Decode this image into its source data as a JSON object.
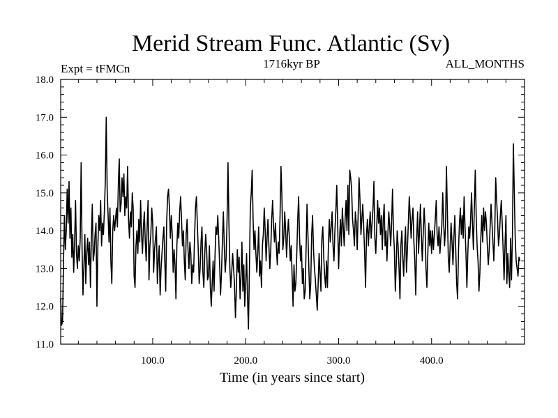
{
  "chart_data": {
    "type": "line",
    "title": "Merid Stream Func. Atlantic (Sv)",
    "subtitle_left": "Expt = tFMCn",
    "subtitle_center": "1716kyr BP",
    "subtitle_right": "ALL_MONTHS",
    "xlabel": "Time (in years since start)",
    "ylabel": "",
    "xlim": [
      1,
      500
    ],
    "ylim": [
      11.0,
      18.0
    ],
    "x_ticks": [
      100,
      200,
      300,
      400
    ],
    "x_tick_labels": [
      "100.0",
      "200.0",
      "300.0",
      "400.0"
    ],
    "y_ticks": [
      11,
      12,
      13,
      14,
      15,
      16,
      17,
      18
    ],
    "y_tick_labels": [
      "11.0",
      "12.0",
      "13.0",
      "14.0",
      "15.0",
      "16.0",
      "17.0",
      "18.0"
    ],
    "series": [
      {
        "name": "tFMCn",
        "color": "#000000",
        "x_start": 1,
        "x_step": 1,
        "values": [
          12.2,
          11.5,
          11.6,
          13.1,
          14.4,
          13.5,
          14.0,
          15.1,
          14.2,
          15.3,
          13.8,
          14.6,
          13.3,
          13.9,
          12.9,
          13.7,
          14.8,
          13.4,
          13.0,
          13.6,
          13.2,
          13.8,
          15.8,
          13.5,
          12.3,
          13.1,
          13.9,
          12.6,
          13.4,
          13.8,
          13.1,
          13.7,
          12.5,
          13.8,
          14.7,
          13.2,
          13.4,
          13.9,
          14.2,
          12.0,
          13.6,
          14.4,
          14.0,
          14.8,
          13.6,
          14.2,
          13.9,
          14.5,
          15.3,
          17.0,
          15.1,
          14.4,
          13.7,
          14.6,
          13.2,
          12.6,
          14.0,
          14.4,
          14.0,
          14.3,
          14.6,
          14.1,
          15.2,
          15.9,
          14.5,
          14.7,
          15.4,
          14.9,
          15.5,
          14.4,
          14.9,
          14.6,
          15.7,
          14.3,
          13.8,
          14.5,
          14.1,
          15.0,
          14.6,
          12.8,
          12.5,
          13.6,
          14.0,
          13.4,
          14.3,
          13.7,
          14.8,
          13.9,
          13.4,
          14.1,
          14.5,
          13.7,
          13.2,
          14.1,
          14.8,
          12.7,
          13.6,
          13.9,
          14.6,
          14.2,
          12.9,
          13.5,
          13.8,
          14.1,
          12.6,
          13.2,
          13.6,
          12.3,
          13.0,
          13.4,
          13.8,
          14.1,
          13.2,
          12.4,
          14.2,
          14.9,
          15.1,
          14.6,
          13.8,
          14.4,
          13.9,
          12.9,
          13.5,
          13.1,
          12.2,
          13.6,
          14.2,
          13.8,
          14.5,
          14.9,
          14.3,
          13.6,
          14.0,
          13.2,
          12.7,
          13.9,
          14.3,
          13.5,
          13.0,
          13.7,
          13.4,
          12.6,
          13.1,
          12.9,
          13.8,
          14.6,
          14.9,
          14.2,
          13.5,
          12.6,
          13.0,
          13.7,
          14.1,
          12.9,
          12.5,
          13.4,
          13.9,
          13.5,
          12.7,
          12.8,
          13.6,
          12.5,
          12.0,
          12.6,
          13.2,
          12.4,
          13.3,
          14.1,
          13.9,
          14.4,
          13.8,
          13.1,
          12.3,
          12.9,
          13.7,
          14.5,
          13.6,
          12.9,
          13.3,
          14.3,
          15.8,
          14.2,
          13.0,
          12.5,
          12.9,
          13.4,
          13.0,
          12.6,
          11.7,
          12.4,
          13.5,
          12.9,
          13.3,
          12.2,
          12.8,
          13.7,
          12.4,
          13.1,
          12.0,
          12.6,
          13.4,
          12.2,
          11.4,
          12.9,
          14.6,
          15.0,
          15.6,
          14.3,
          13.5,
          14.0,
          13.4,
          12.9,
          13.4,
          14.1,
          12.8,
          13.2,
          12.5,
          13.6,
          13.9,
          14.6,
          14.0,
          13.2,
          13.8,
          14.3,
          13.6,
          13.0,
          13.5,
          14.3,
          14.8,
          14.1,
          13.7,
          14.2,
          13.6,
          13.1,
          13.7,
          13.4,
          14.4,
          15.7,
          14.9,
          13.5,
          13.8,
          14.5,
          14.0,
          13.3,
          13.9,
          14.3,
          13.8,
          13.2,
          13.6,
          12.8,
          12.0,
          13.1,
          12.4,
          12.6,
          13.4,
          14.3,
          14.9,
          13.8,
          13.2,
          13.6,
          12.6,
          13.0,
          12.2,
          12.4,
          13.5,
          14.7,
          13.9,
          13.0,
          12.2,
          12.6,
          13.9,
          14.4,
          13.5,
          13.0,
          12.7,
          12.3,
          11.9,
          12.6,
          13.4,
          12.9,
          12.4,
          13.8,
          14.1,
          13.3,
          12.8,
          12.5,
          13.2,
          12.5,
          13.6,
          14.3,
          13.7,
          14.1,
          14.5,
          13.6,
          13.2,
          14.0,
          14.5,
          15.2,
          14.2,
          13.0,
          13.8,
          14.3,
          13.6,
          14.6,
          14.1,
          13.6,
          14.3,
          14.8,
          14.0,
          15.2,
          13.9,
          15.6,
          15.4,
          15.1,
          14.3,
          14.0,
          13.6,
          14.5,
          14.2,
          13.5,
          14.4,
          15.4,
          14.8,
          13.9,
          14.3,
          14.7,
          14.1,
          13.4,
          12.5,
          13.9,
          14.3,
          13.6,
          14.1,
          14.5,
          13.8,
          14.2,
          14.6,
          15.3,
          13.8,
          13.4,
          14.1,
          14.8,
          14.2,
          14.6,
          13.9,
          14.4,
          13.5,
          14.3,
          14.7,
          13.6,
          14.0,
          13.2,
          13.9,
          14.5,
          14.1,
          13.6,
          14.2,
          15.1,
          14.0,
          13.5,
          12.4,
          13.1,
          14.0,
          13.6,
          13.0,
          12.2,
          13.6,
          14.0,
          13.3,
          12.8,
          13.6,
          14.1,
          12.9,
          13.5,
          14.2,
          14.9,
          14.4,
          13.8,
          14.3,
          14.6,
          13.7,
          13.2,
          12.3,
          13.8,
          14.5,
          13.4,
          14.0,
          14.7,
          13.9,
          13.2,
          13.9,
          14.6,
          14.1,
          13.0,
          12.5,
          13.4,
          14.2,
          13.6,
          14.0,
          13.4,
          14.0,
          13.5,
          13.9,
          14.3,
          14.8,
          13.9,
          13.6,
          14.1,
          13.4,
          13.8,
          14.1,
          15.0,
          14.2,
          13.6,
          14.1,
          15.7,
          14.5,
          13.3,
          12.9,
          13.6,
          14.2,
          13.7,
          13.1,
          13.8,
          14.4,
          13.5,
          12.6,
          12.2,
          13.5,
          14.2,
          14.6,
          13.9,
          14.4,
          13.8,
          14.9,
          14.1,
          13.4,
          12.5,
          13.4,
          14.1,
          13.8,
          14.3,
          15.0,
          14.2,
          13.5,
          14.6,
          15.6,
          14.4,
          13.6,
          13.2,
          12.4,
          12.9,
          13.8,
          14.4,
          13.7,
          14.6,
          14.0,
          14.5,
          14.2,
          13.6,
          13.1,
          13.5,
          14.1,
          14.7,
          14.2,
          13.7,
          13.2,
          14.0,
          15.4,
          14.8,
          14.3,
          13.6,
          13.9,
          14.4,
          14.8,
          14.2,
          13.5,
          12.7,
          13.6,
          14.4,
          12.6,
          13.4,
          12.9,
          12.5,
          13.8,
          12.7,
          13.9,
          16.3,
          15.0,
          13.8,
          13.2,
          13.0,
          12.8,
          13.3,
          13.2
        ]
      }
    ]
  }
}
